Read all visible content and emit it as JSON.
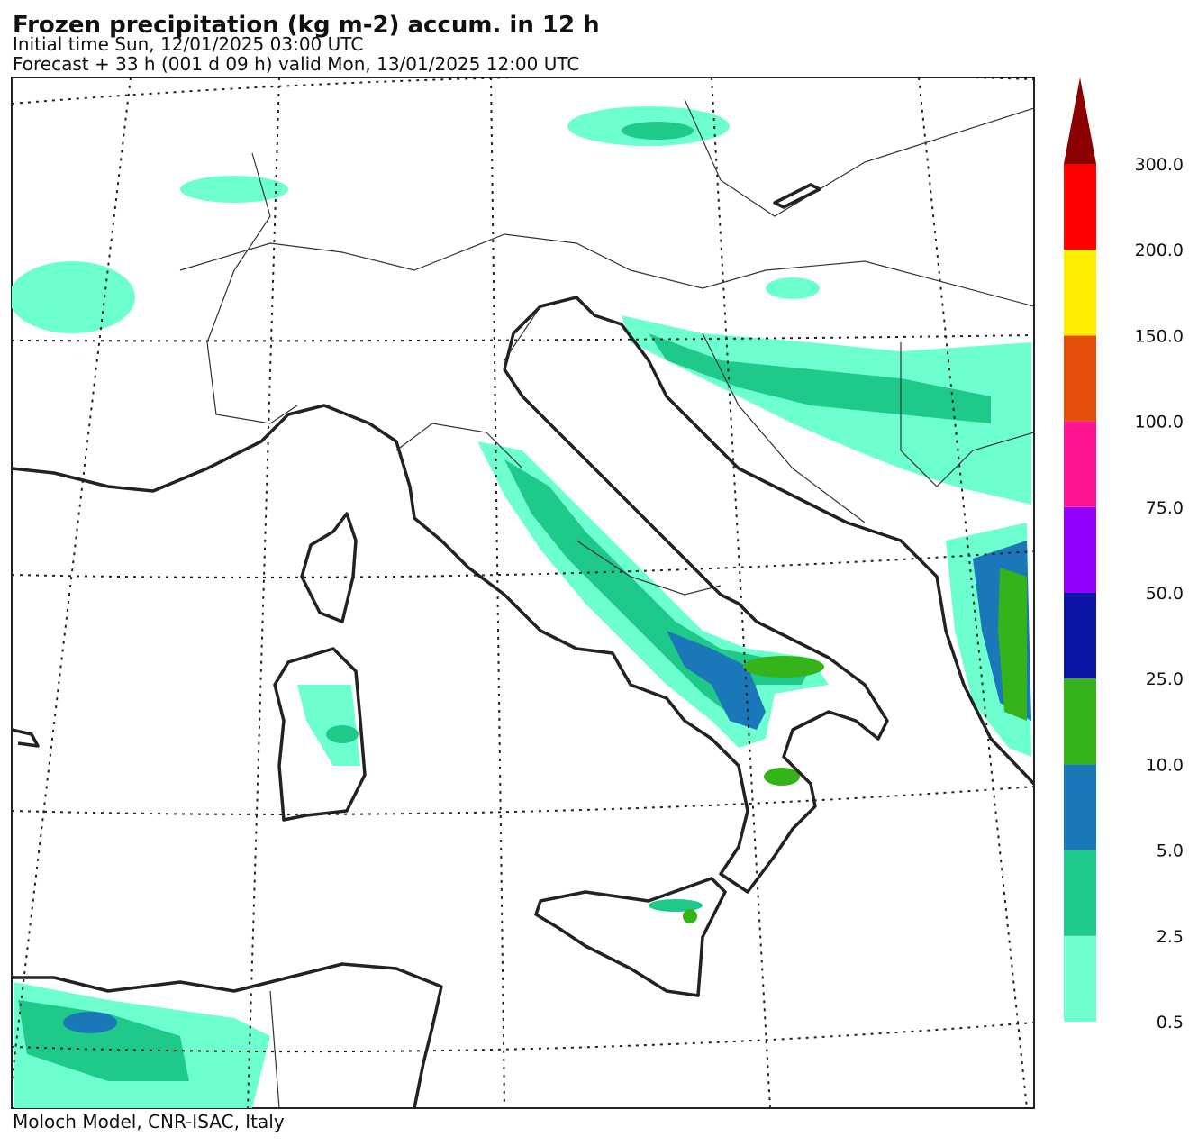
{
  "header": {
    "title": "Frozen precipitation (kg m-2) accum. in 12 h",
    "initial_time": "Initial time  Sun, 12/01/2025  03:00 UTC",
    "forecast": "Forecast  +  33 h  (001 d 09 h)  valid Mon, 13/01/2025 12:00 UTC"
  },
  "footer": "Moloch Model, CNR-ISAC, Italy",
  "legend": {
    "levels": [
      {
        "value": 0.5,
        "label": "0.5"
      },
      {
        "value": 2.5,
        "label": "2.5"
      },
      {
        "value": 5,
        "label": "5.0"
      },
      {
        "value": 10,
        "label": "10.0"
      },
      {
        "value": 25,
        "label": "25.0"
      },
      {
        "value": 50,
        "label": "50.0"
      },
      {
        "value": 75,
        "label": "75.0"
      },
      {
        "value": 100,
        "label": "100.0"
      },
      {
        "value": 150,
        "label": "150.0"
      },
      {
        "value": 200,
        "label": "200.0"
      },
      {
        "value": 300,
        "label": "300.0"
      }
    ],
    "colors": [
      "#6effd0",
      "#1ec98a",
      "#1a78b8",
      "#36b21a",
      "#0c14a8",
      "#9400ff",
      "#ff1493",
      "#e4500c",
      "#ffee00",
      "#ff0000"
    ],
    "extend_color": "#8b0000"
  }
}
